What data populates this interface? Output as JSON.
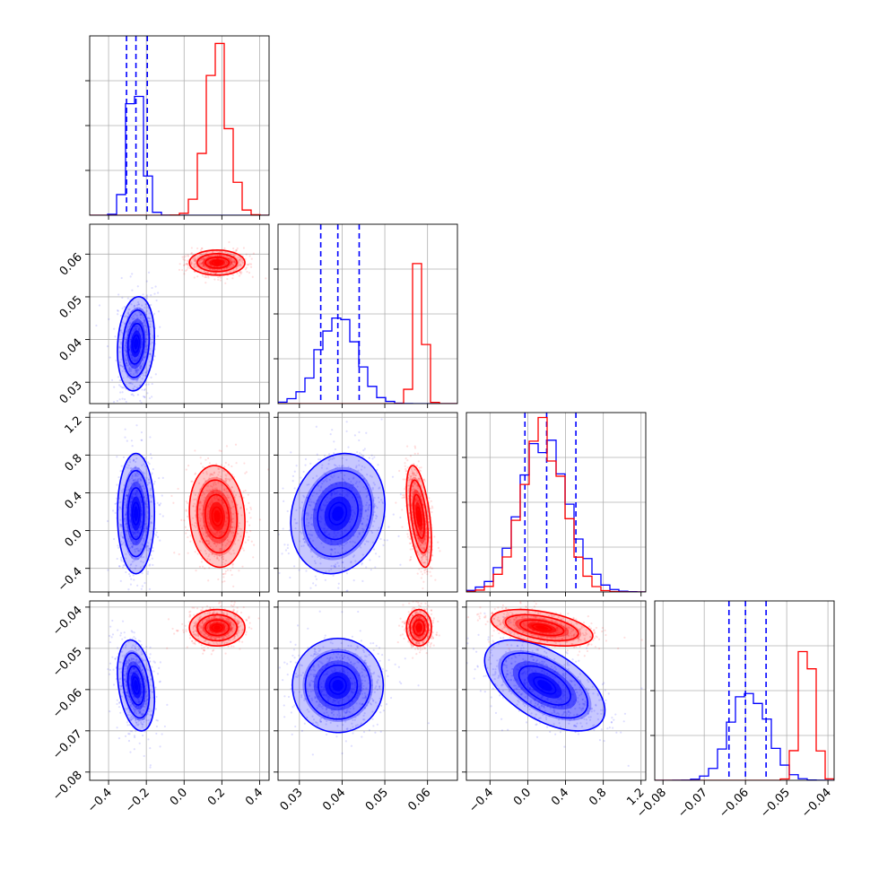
{
  "chart_data": {
    "type": "scatter",
    "title": "",
    "grid": true,
    "legend": "none",
    "colors": {
      "series_a": "#0000ff",
      "series_b": "#ff0000"
    },
    "dimensions": [
      {
        "range": [
          -0.5,
          0.45
        ],
        "ticks": [
          -0.4,
          -0.2,
          0.0,
          0.2,
          0.4
        ],
        "tick_labels": [
          "−0.4",
          "−0.2",
          "0.0",
          "0.2",
          "0.4"
        ]
      },
      {
        "range": [
          0.025,
          0.067
        ],
        "ticks": [
          0.03,
          0.04,
          0.05,
          0.06
        ],
        "tick_labels": [
          "0.03",
          "0.04",
          "0.05",
          "0.06"
        ]
      },
      {
        "range": [
          -0.65,
          1.25
        ],
        "ticks": [
          -0.4,
          0.0,
          0.4,
          0.8,
          1.2
        ],
        "tick_labels": [
          "−0.4",
          "0.0",
          "0.4",
          "0.8",
          "1.2"
        ]
      },
      {
        "range": [
          -0.082,
          -0.0385
        ],
        "ticks": [
          -0.08,
          -0.07,
          -0.06,
          -0.05,
          -0.04
        ],
        "tick_labels": [
          "−0.08",
          "−0.07",
          "−0.06",
          "−0.05",
          "−0.04"
        ]
      }
    ],
    "series": [
      {
        "color": "#0000ff",
        "mean": [
          -0.255,
          0.039,
          0.18,
          -0.059
        ],
        "std": [
          0.04,
          0.0045,
          0.26,
          0.0045
        ],
        "corr": [
          [
            1,
            0.15,
            0,
            -0.3
          ],
          [
            0.15,
            1,
            0.15,
            0
          ],
          [
            0,
            0.15,
            1,
            -0.55
          ],
          [
            -0.3,
            0,
            -0.55,
            1
          ]
        ],
        "quantiles": [
          [
            -0.305,
            -0.255,
            -0.195
          ],
          [
            0.035,
            0.039,
            0.044
          ],
          [
            -0.03,
            0.2,
            0.51
          ],
          [
            -0.064,
            -0.06,
            -0.055
          ]
        ],
        "hist_peaks": [
          0.78,
          0.46,
          0.84,
          0.5
        ]
      },
      {
        "color": "#ff0000",
        "mean": [
          0.175,
          0.058,
          0.15,
          -0.045
        ],
        "std": [
          0.06,
          0.0012,
          0.22,
          0.0018
        ],
        "corr": [
          [
            1,
            0,
            -0.1,
            0
          ],
          [
            0,
            1,
            -0.5,
            0
          ],
          [
            -0.1,
            -0.5,
            1,
            -0.45
          ],
          [
            0,
            0,
            -0.45,
            1
          ]
        ],
        "quantiles": [],
        "hist_peaks": [
          0.9,
          0.84,
          0.9,
          0.82
        ]
      }
    ]
  }
}
